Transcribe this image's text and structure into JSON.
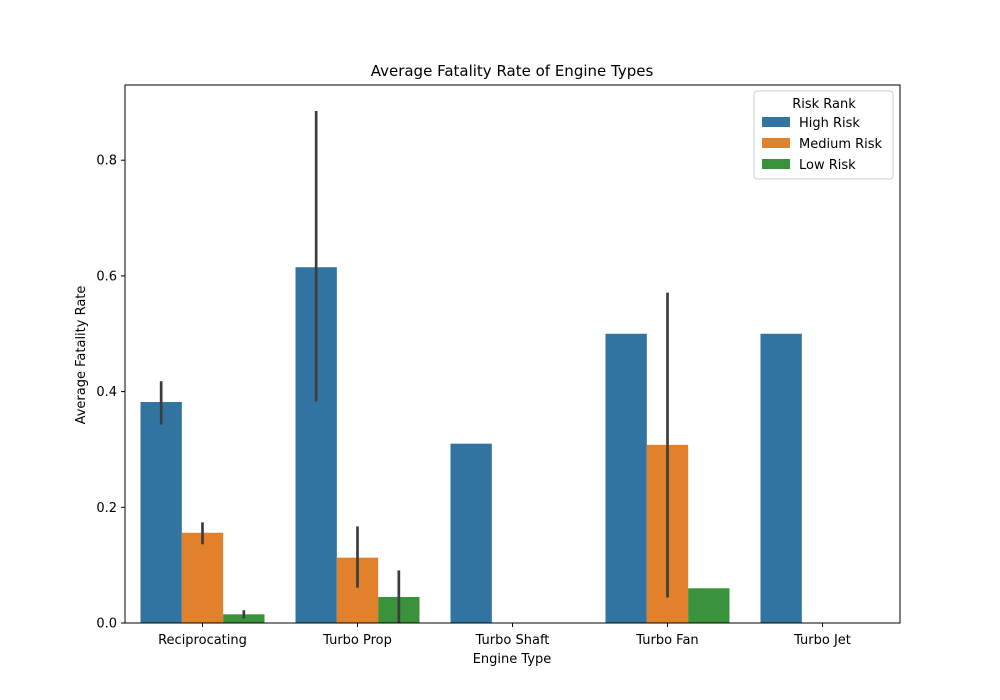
{
  "chart_data": {
    "type": "bar",
    "title": "Average Fatality Rate of Engine Types",
    "xlabel": "Engine Type",
    "ylabel": "Average Fatality Rate",
    "categories": [
      "Reciprocating",
      "Turbo Prop",
      "Turbo Shaft",
      "Turbo Fan",
      "Turbo Jet"
    ],
    "ylim": [
      0,
      0.93
    ],
    "yticks": [
      0.0,
      0.2,
      0.4,
      0.6,
      0.8
    ],
    "ytick_labels": [
      "0.0",
      "0.2",
      "0.4",
      "0.6",
      "0.8"
    ],
    "legend": {
      "title": "Risk Rank",
      "placement": "top-right"
    },
    "series": [
      {
        "name": "High Risk",
        "color": "#3274a1",
        "values": [
          0.382,
          0.615,
          0.31,
          0.5,
          0.5
        ],
        "error_low": [
          0.343,
          0.383,
          null,
          null,
          null
        ],
        "error_high": [
          0.418,
          0.885,
          null,
          null,
          null
        ]
      },
      {
        "name": "Medium Risk",
        "color": "#e1812c",
        "values": [
          0.156,
          0.113,
          null,
          0.308,
          null
        ],
        "error_low": [
          0.136,
          0.061,
          null,
          0.044,
          null
        ],
        "error_high": [
          0.174,
          0.167,
          null,
          0.571,
          null
        ]
      },
      {
        "name": "Low Risk",
        "color": "#3a923a",
        "values": [
          0.015,
          0.045,
          null,
          0.06,
          null
        ],
        "error_low": [
          0.008,
          0.0,
          null,
          null,
          null
        ],
        "error_high": [
          0.022,
          0.091,
          null,
          null,
          null
        ]
      }
    ],
    "grid": false
  }
}
